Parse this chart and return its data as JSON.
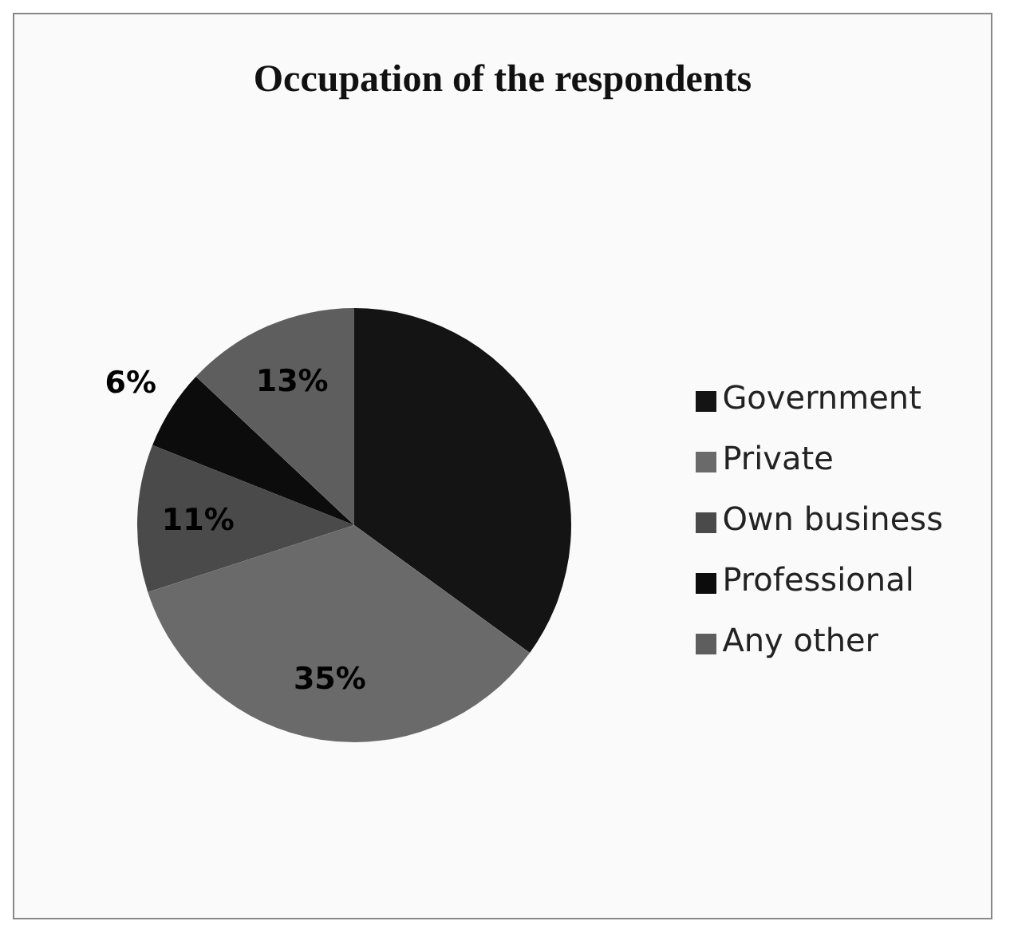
{
  "chart_data": {
    "type": "pie",
    "title": "Occupation of the respondents",
    "categories": [
      "Government",
      "Private",
      "Own business",
      "Professional",
      "Any other"
    ],
    "values": [
      35,
      35,
      11,
      6,
      13
    ],
    "colors": [
      "#141414",
      "#6a6a6a",
      "#4a4a4a",
      "#0c0c0c",
      "#5e5e5e"
    ],
    "value_labels": [
      null,
      "35%",
      "11%",
      "6%",
      "13%"
    ],
    "legend": "right"
  }
}
